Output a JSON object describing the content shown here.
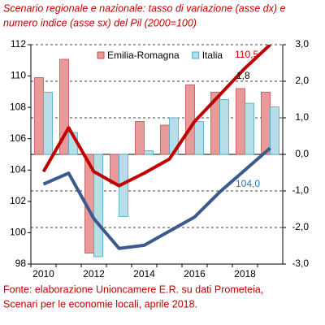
{
  "chart_data": {
    "type": "combo",
    "title": [
      "Scenario regionale e nazionale: tasso di variazione (asse dx) e",
      "numero indice (asse sx) del Pil (2000=100)"
    ],
    "footnote": [
      "Fonte: elaborazione Unioncamere E.R. su dati Prometeia,",
      "Scenari per le economie locali, aprile 2018."
    ],
    "categories": [
      "2010",
      null,
      "2012",
      null,
      "2014",
      null,
      "2016",
      null,
      "2018",
      null
    ],
    "ylim": [
      98,
      112
    ],
    "yticks": [
      98,
      100,
      102,
      104,
      106,
      108,
      110,
      112
    ],
    "y2lim": [
      -3,
      3
    ],
    "y2ticks": [
      {
        "value": -3,
        "label": "-3,0"
      },
      {
        "value": -2,
        "label": "-2,0"
      },
      {
        "value": -1,
        "label": "-1,0"
      },
      {
        "value": 0,
        "label": "0,0"
      },
      {
        "value": 1,
        "label": "1,0"
      },
      {
        "value": 2,
        "label": "2,0"
      },
      {
        "value": 3,
        "label": "3,0"
      }
    ],
    "grid": true,
    "legend": "top",
    "series": [
      {
        "name": "Emilia-Romagna",
        "type": "bar",
        "axis": "y2",
        "color": "#e89a9a",
        "border": "#c0504d",
        "values": [
          2.1,
          2.6,
          -2.7,
          -0.8,
          0.9,
          0.8,
          1.9,
          1.7,
          1.8,
          1.7
        ]
      },
      {
        "name": "Italia",
        "type": "bar",
        "axis": "y2",
        "color": "#b7dde8",
        "border": "#4bacc6",
        "values": [
          1.7,
          0.6,
          -2.8,
          -1.7,
          0.1,
          1.0,
          0.9,
          1.5,
          1.4,
          1.3
        ]
      },
      {
        "type": "line",
        "axis": "y",
        "color": "#c00000",
        "values": [
          103.9,
          106.7,
          103.9,
          103.0,
          103.8,
          104.7,
          107.1,
          108.8,
          110.5,
          112.0
        ]
      },
      {
        "type": "line",
        "axis": "y",
        "color": "#3c5a8c",
        "values": [
          103.1,
          103.8,
          100.9,
          99.0,
          99.2,
          100.1,
          101.0,
          102.6,
          104.0,
          105.4
        ]
      }
    ],
    "annotations": [
      "110,5",
      "1,8",
      "104,0"
    ]
  }
}
